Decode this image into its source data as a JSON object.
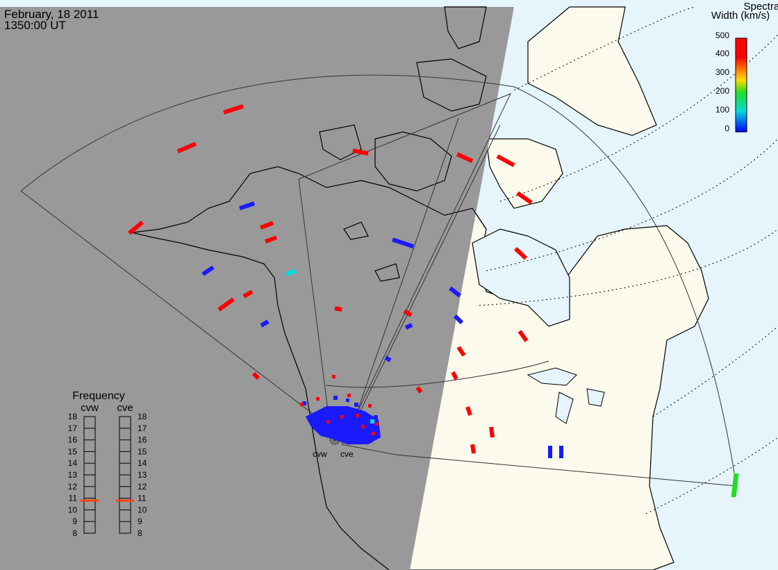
{
  "header": {
    "date": "February, 18 2011",
    "time": "1350:00 UT"
  },
  "colorbar": {
    "title_line1": "Spectral",
    "title_line2": "Width (km/s)",
    "ticks": [
      "500",
      "400",
      "300",
      "200",
      "100",
      "0"
    ],
    "colors": [
      "#ff0000",
      "#ff8800",
      "#ffdd00",
      "#22dd22",
      "#00dddd",
      "#0000ff"
    ]
  },
  "frequency_panel": {
    "title": "Frequency",
    "radars": [
      "cvw",
      "cve"
    ],
    "scale_labels": [
      "18",
      "17",
      "16",
      "15",
      "14",
      "13",
      "12",
      "11",
      "10",
      "9",
      "8"
    ],
    "current_frequency_mhz": 10.8,
    "marker_color": "#ff4400"
  },
  "radar_site_labels": [
    "cvw",
    "cve"
  ],
  "colors": {
    "night_side": "#999999",
    "day_land": "#fbfaec",
    "day_ocean": "#e6f4fc",
    "coastline": "#000000"
  }
}
